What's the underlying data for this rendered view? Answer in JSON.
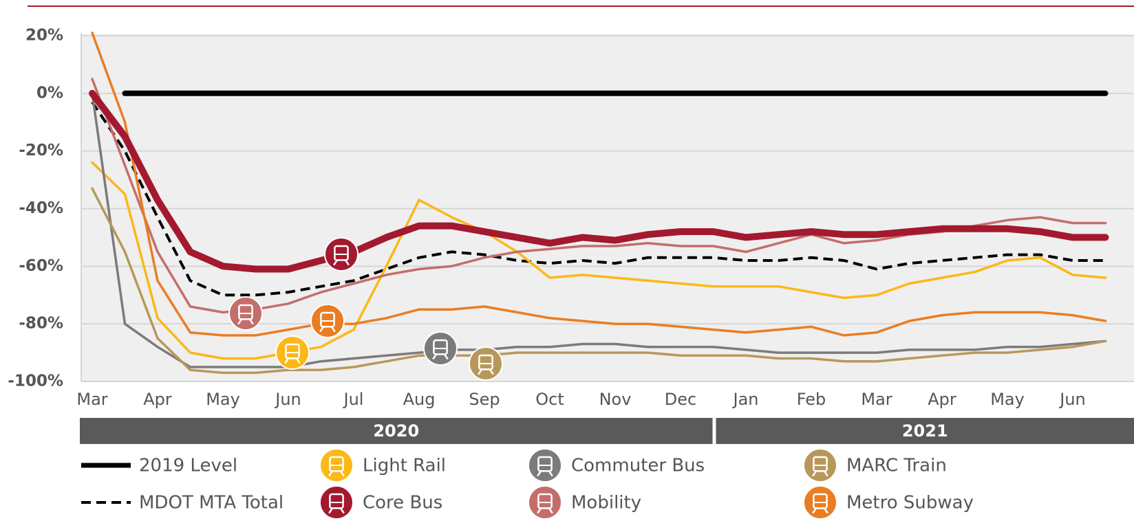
{
  "chart_data": {
    "type": "line",
    "categories": [
      "Mar",
      null,
      "Apr",
      null,
      "May",
      null,
      "Jun",
      null,
      "Jul",
      null,
      "Aug",
      null,
      "Sep",
      null,
      "Oct",
      null,
      "Nov",
      null,
      "Dec",
      null,
      "Jan",
      null,
      "Feb",
      null,
      "Mar",
      null,
      "Apr",
      null,
      "May",
      null,
      "Jun",
      null
    ],
    "x_groups": [
      {
        "label": "2020",
        "start": "Mar"
      },
      {
        "label": "2021",
        "start": "Jan"
      }
    ],
    "ylim": [
      -100,
      20
    ],
    "yticks": [
      {
        "value": -100,
        "label": "-100%"
      },
      {
        "value": -80,
        "label": "-80%"
      },
      {
        "value": -60,
        "label": "-60%"
      },
      {
        "value": -40,
        "label": "-40%"
      },
      {
        "value": -20,
        "label": "-20%"
      },
      {
        "value": 0,
        "label": "0%"
      },
      {
        "value": 20,
        "label": "20%"
      }
    ],
    "grid": true,
    "series": [
      {
        "name": "2019 Level",
        "color": "#000000",
        "line_style": "solid",
        "emphasis": true,
        "legend_marker": "line",
        "values": [
          null,
          0,
          0,
          0,
          0,
          0,
          0,
          0,
          0,
          0,
          0,
          0,
          0,
          0,
          0,
          0,
          0,
          0,
          0,
          0,
          0,
          0,
          0,
          0,
          0,
          0,
          0,
          0,
          0,
          0,
          0,
          0
        ]
      },
      {
        "name": "MDOT MTA Total",
        "color": "#000000",
        "line_style": "dashed",
        "emphasis": false,
        "legend_marker": "line",
        "values": [
          -3,
          -20,
          -43,
          -65,
          -70,
          -70,
          -69,
          -67,
          -65,
          -61,
          -57,
          -55,
          -56,
          -58,
          -59,
          -58,
          -59,
          -57,
          -57,
          -57,
          -58,
          -58,
          -57,
          -58,
          -61,
          -59,
          -58,
          -57,
          -56,
          -56,
          -58,
          -58
        ]
      },
      {
        "name": "Light Rail",
        "color": "#fbb817",
        "line_style": "solid",
        "emphasis": false,
        "legend_marker": "icon",
        "values": [
          -24,
          -35,
          -78,
          -90,
          -92,
          -92,
          -90,
          -88,
          -82,
          -60,
          -37,
          -43,
          -48,
          -55,
          -64,
          -63,
          -64,
          -65,
          -66,
          -67,
          -67,
          -67,
          -69,
          -71,
          -70,
          -66,
          -64,
          -62,
          -58,
          -57,
          -63,
          -64
        ]
      },
      {
        "name": "Core Bus",
        "color": "#a3192f",
        "line_style": "solid",
        "emphasis": true,
        "legend_marker": "icon",
        "values": [
          0,
          -15,
          -37,
          -55,
          -60,
          -61,
          -61,
          -58,
          -55,
          -50,
          -46,
          -46,
          -48,
          -50,
          -52,
          -50,
          -51,
          -49,
          -48,
          -48,
          -50,
          -49,
          -48,
          -49,
          -49,
          -48,
          -47,
          -47,
          -47,
          -48,
          -50,
          -50
        ]
      },
      {
        "name": "Commuter Bus",
        "color": "#7b7b7b",
        "line_style": "solid",
        "emphasis": false,
        "legend_marker": "icon",
        "values": [
          0,
          -80,
          -88,
          -95,
          -95,
          -95,
          -95,
          -93,
          -92,
          -91,
          -90,
          -89,
          -89,
          -88,
          -88,
          -87,
          -87,
          -88,
          -88,
          -88,
          -89,
          -90,
          -90,
          -90,
          -90,
          -89,
          -89,
          -89,
          -88,
          -88,
          -87,
          -86
        ]
      },
      {
        "name": "Mobility",
        "color": "#c46e6b",
        "line_style": "solid",
        "emphasis": false,
        "legend_marker": "icon",
        "values": [
          5,
          -25,
          -55,
          -74,
          -76,
          -75,
          -73,
          -69,
          -66,
          -63,
          -61,
          -60,
          -57,
          -55,
          -54,
          -53,
          -53,
          -52,
          -53,
          -53,
          -55,
          -52,
          -49,
          -52,
          -51,
          -49,
          -48,
          -46,
          -44,
          -43,
          -45,
          -45
        ]
      },
      {
        "name": "MARC Train",
        "color": "#b8985a",
        "line_style": "solid",
        "emphasis": false,
        "legend_marker": "icon",
        "values": [
          -33,
          -55,
          -85,
          -96,
          -97,
          -97,
          -96,
          -96,
          -95,
          -93,
          -91,
          -91,
          -91,
          -90,
          -90,
          -90,
          -90,
          -90,
          -91,
          -91,
          -91,
          -92,
          -92,
          -93,
          -93,
          -92,
          -91,
          -90,
          -90,
          -89,
          -88,
          -86
        ]
      },
      {
        "name": "Metro Subway",
        "color": "#e97d23",
        "line_style": "solid",
        "emphasis": false,
        "legend_marker": "icon",
        "values": [
          21,
          -10,
          -65,
          -83,
          -84,
          -84,
          -82,
          -80,
          -80,
          -78,
          -75,
          -75,
          -74,
          -76,
          -78,
          -79,
          -80,
          -80,
          -81,
          -82,
          -83,
          -82,
          -81,
          -84,
          -83,
          -79,
          -77,
          -76,
          -76,
          -76,
          -77,
          -79
        ]
      }
    ]
  }
}
